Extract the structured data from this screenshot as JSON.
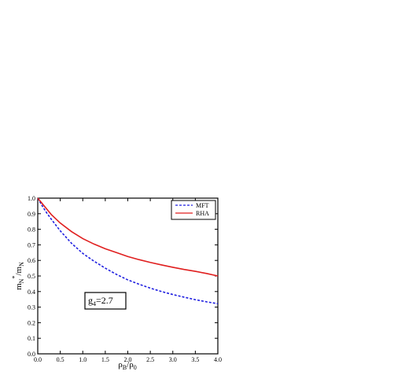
{
  "chart_data": {
    "type": "line",
    "title": "",
    "xlabel": "ρ_B/ρ_0",
    "ylabel": "m_N^*/m_N",
    "xlim": [
      0.0,
      4.0
    ],
    "ylim": [
      0.0,
      1.0
    ],
    "x_ticks": [
      "0.0",
      "0.5",
      "1.0",
      "1.5",
      "2.0",
      "2.5",
      "3.0",
      "3.5",
      "4.0"
    ],
    "y_ticks": [
      "0.0",
      "0.1",
      "0.2",
      "0.3",
      "0.4",
      "0.5",
      "0.6",
      "0.7",
      "0.8",
      "0.9",
      "1.0"
    ],
    "grid": false,
    "legend_position": "top-right",
    "annotation": {
      "base": "g",
      "sub": "4",
      "suffix": "=2.7"
    },
    "series": [
      {
        "name": "MFT",
        "color": "#1f1fe0",
        "style": "dashed",
        "x": [
          0.0,
          0.1,
          0.2,
          0.3,
          0.5,
          0.75,
          1.0,
          1.25,
          1.5,
          1.75,
          2.0,
          2.25,
          2.5,
          2.75,
          3.0,
          3.25,
          3.5,
          3.75,
          4.0
        ],
        "y": [
          1.0,
          0.95,
          0.905,
          0.865,
          0.79,
          0.71,
          0.645,
          0.595,
          0.55,
          0.51,
          0.475,
          0.447,
          0.422,
          0.4,
          0.381,
          0.364,
          0.348,
          0.334,
          0.322
        ]
      },
      {
        "name": "RHA",
        "color": "#e01f1f",
        "style": "solid",
        "x": [
          0.0,
          0.1,
          0.2,
          0.3,
          0.5,
          0.75,
          1.0,
          1.25,
          1.5,
          1.75,
          2.0,
          2.25,
          2.5,
          2.75,
          3.0,
          3.25,
          3.5,
          3.75,
          4.0
        ],
        "y": [
          1.0,
          0.965,
          0.93,
          0.895,
          0.84,
          0.785,
          0.74,
          0.705,
          0.675,
          0.65,
          0.625,
          0.605,
          0.587,
          0.571,
          0.556,
          0.542,
          0.53,
          0.516,
          0.5
        ]
      }
    ]
  }
}
